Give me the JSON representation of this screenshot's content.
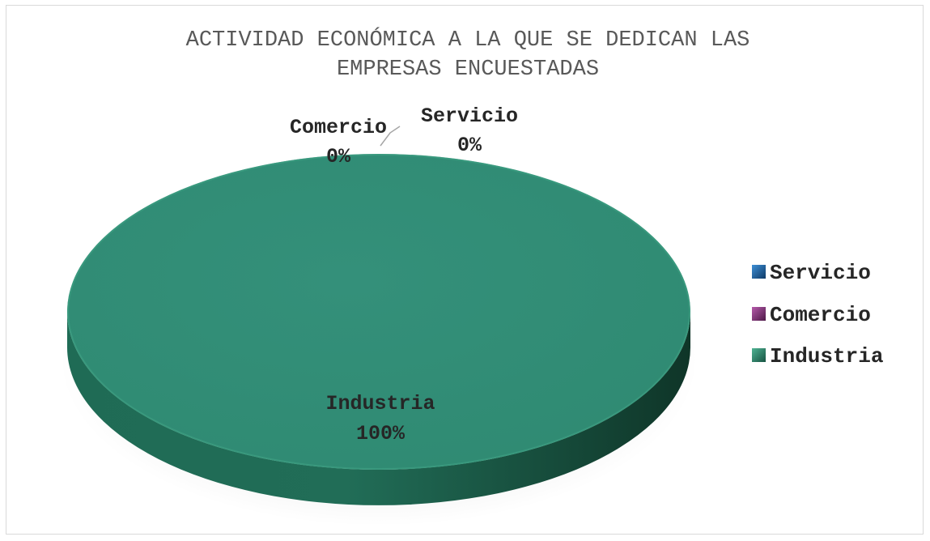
{
  "chart_data": {
    "type": "pie",
    "style": "3d",
    "title_lines": [
      "ACTIVIDAD ECONÓMICA A LA QUE SE DEDICAN LAS",
      "EMPRESAS ENCUESTADAS"
    ],
    "categories": [
      "Servicio",
      "Comercio",
      "Industria"
    ],
    "values": [
      0,
      0,
      100
    ],
    "data_labels": [
      {
        "category": "Servicio",
        "percent": "0%"
      },
      {
        "category": "Comercio",
        "percent": "0%"
      },
      {
        "category": "Industria",
        "percent": "100%"
      }
    ],
    "colors": {
      "Servicio": "#1f5f9e",
      "Comercio": "#7a2f73",
      "Industria": "#328a70"
    },
    "legend_position": "right"
  }
}
